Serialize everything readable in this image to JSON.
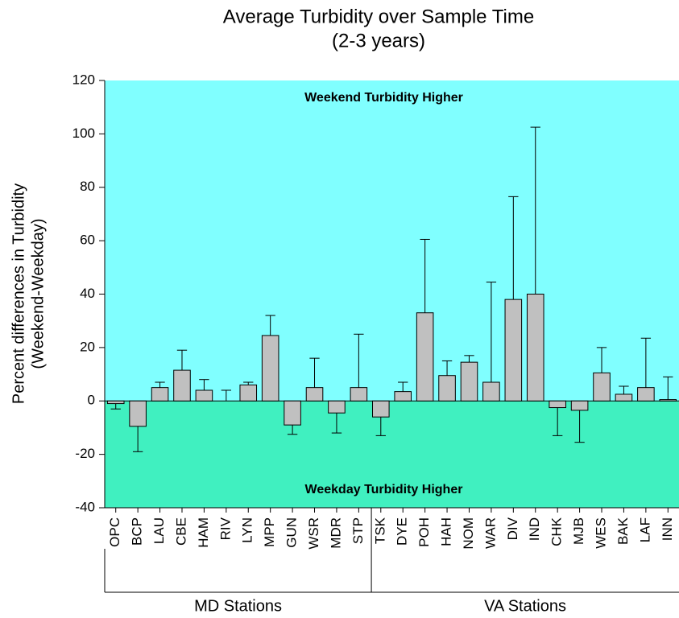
{
  "chart_data": {
    "type": "bar",
    "title": "Average Turbidity over Sample Time",
    "subtitle": "(2-3 years)",
    "y_label": [
      "Percent differences in Turbidity",
      "(Weekend-Weekday)"
    ],
    "categories": [
      "OPC",
      "BCP",
      "LAU",
      "CBE",
      "HAM",
      "RIV",
      "LYN",
      "MPP",
      "GUN",
      "WSR",
      "MDR",
      "STP",
      "TSK",
      "DYE",
      "POH",
      "HAH",
      "NOM",
      "WAR",
      "DIV",
      "IND",
      "CHK",
      "MJB",
      "WES",
      "BAK",
      "LAF",
      "INN"
    ],
    "values": [
      -1,
      -9.5,
      5,
      11.5,
      4,
      0,
      6,
      24.5,
      -9,
      5,
      -4.5,
      5,
      -6,
      3.5,
      33,
      9.5,
      14.5,
      7,
      38,
      40,
      -2.5,
      -3.5,
      10.5,
      2.5,
      5,
      0.5
    ],
    "errors": [
      2,
      9.5,
      2,
      7.5,
      4,
      4,
      1,
      7.5,
      3.5,
      11,
      7.5,
      20,
      7,
      3.5,
      27.5,
      5.5,
      2.5,
      37.5,
      38.5,
      62.5,
      10.5,
      12,
      9.5,
      3,
      18.5,
      8.5
    ],
    "color": "#c0c0c0",
    "positive_region_color": "#80ffff",
    "negative_region_color": "#40f0c0",
    "annotations": [
      "Weekend Turbidity Higher",
      "Weekday Turbidity Higher"
    ],
    "groups": [
      "MD Stations",
      "VA Stations"
    ],
    "ylim": [
      -40,
      120
    ],
    "yticks": [
      -40,
      -20,
      0,
      20,
      40,
      60,
      80,
      100,
      120
    ]
  }
}
